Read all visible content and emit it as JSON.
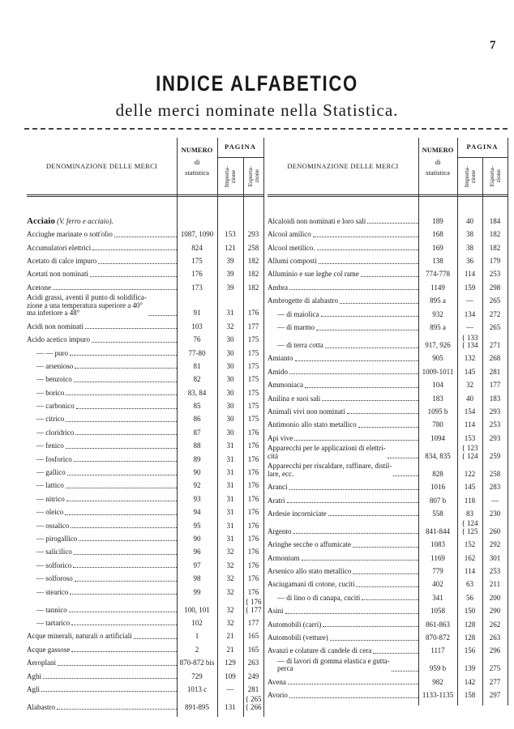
{
  "page_number": "7",
  "title": "INDICE ALFABETICO",
  "subtitle": "delle merci nominate nella Statistica.",
  "headers": {
    "name": "DENOMINAZIONE DELLE MERCI",
    "numero": "NUMERO",
    "numero_sub1": "di",
    "numero_sub2": "statistica",
    "pagina": "PAGINA",
    "importazione": "Importa-\nzione",
    "esportazione": "Esporta-\nzione"
  },
  "left_entries": [
    {
      "name": "Acciaio",
      "note": "(V. ferro e acciaio).",
      "numero": "",
      "importazione": "",
      "esportazione": "",
      "h": 1
    },
    {
      "name": "Acciughe marinate o sott'olio",
      "numero": "1087, 1090",
      "importazione": "153",
      "esportazione": "293",
      "h": 1
    },
    {
      "name": "Accumulatori elettrici",
      "numero": "824",
      "importazione": "121",
      "esportazione": "258",
      "h": 1
    },
    {
      "name": "Acetato di calce impuro",
      "numero": "175",
      "importazione": "39",
      "esportazione": "182",
      "h": 1
    },
    {
      "name": "Acetati non nominati",
      "numero": "176",
      "importazione": "39",
      "esportazione": "182",
      "h": 1
    },
    {
      "name": "Acetone",
      "numero": "173",
      "importazione": "39",
      "esportazione": "182",
      "h": 1
    },
    {
      "name": "Acidi grassi, aventi il punto di solidifica-\nzione a una temperatura superiore a 40°\nma inferiore a 48°",
      "numero": "91",
      "importazione": "31",
      "esportazione": "176",
      "h": 3
    },
    {
      "name": "Acidi non nominati",
      "numero": "103",
      "importazione": "32",
      "esportazione": "177",
      "h": 1
    },
    {
      "name": "Acido acetico impuro",
      "numero": "76",
      "importazione": "30",
      "esportazione": "175",
      "h": 1
    },
    {
      "name": "— — puro",
      "numero": "77-80",
      "importazione": "30",
      "esportazione": "175",
      "h": 1,
      "indent": 1
    },
    {
      "name": "— arsenioso",
      "numero": "81",
      "importazione": "30",
      "esportazione": "175",
      "h": 1,
      "indent": 1
    },
    {
      "name": "— benzoico",
      "numero": "82",
      "importazione": "30",
      "esportazione": "175",
      "h": 1,
      "indent": 1
    },
    {
      "name": "— borico",
      "numero": "83, 84",
      "importazione": "30",
      "esportazione": "175",
      "h": 1,
      "indent": 1
    },
    {
      "name": "— carbonico",
      "numero": "85",
      "importazione": "30",
      "esportazione": "175",
      "h": 1,
      "indent": 1
    },
    {
      "name": "— citrico",
      "numero": "86",
      "importazione": "30",
      "esportazione": "175",
      "h": 1,
      "indent": 1
    },
    {
      "name": "— cloridrico",
      "numero": "87",
      "importazione": "30",
      "esportazione": "176",
      "h": 1,
      "indent": 1
    },
    {
      "name": "— fenico",
      "numero": "88",
      "importazione": "31",
      "esportazione": "176",
      "h": 1,
      "indent": 1
    },
    {
      "name": "— fosforico",
      "numero": "89",
      "importazione": "31",
      "esportazione": "176",
      "h": 1,
      "indent": 1
    },
    {
      "name": "— gallico",
      "numero": "90",
      "importazione": "31",
      "esportazione": "176",
      "h": 1,
      "indent": 1
    },
    {
      "name": "— lattico",
      "numero": "92",
      "importazione": "31",
      "esportazione": "176",
      "h": 1,
      "indent": 1
    },
    {
      "name": "— nitrico",
      "numero": "93",
      "importazione": "31",
      "esportazione": "176",
      "h": 1,
      "indent": 1
    },
    {
      "name": "— oleico",
      "numero": "94",
      "importazione": "31",
      "esportazione": "176",
      "h": 1,
      "indent": 1
    },
    {
      "name": "— ossalico",
      "numero": "95",
      "importazione": "31",
      "esportazione": "176",
      "h": 1,
      "indent": 1
    },
    {
      "name": "— pirogallico",
      "numero": "90",
      "importazione": "31",
      "esportazione": "176",
      "h": 1,
      "indent": 1
    },
    {
      "name": "— salicilico",
      "numero": "96",
      "importazione": "32",
      "esportazione": "176",
      "h": 1,
      "indent": 1
    },
    {
      "name": "— solforico",
      "numero": "97",
      "importazione": "32",
      "esportazione": "176",
      "h": 1,
      "indent": 1
    },
    {
      "name": "— solforoso",
      "numero": "98",
      "importazione": "32",
      "esportazione": "176",
      "h": 1,
      "indent": 1
    },
    {
      "name": "— stearico",
      "numero": "99",
      "importazione": "32",
      "esportazione": "176",
      "h": 1,
      "indent": 1
    },
    {
      "name": "— tannico",
      "numero": "100, 101",
      "importazione": "32",
      "esportazione": "{ 176\n{ 177",
      "h": 1,
      "indent": 1
    },
    {
      "name": "— tartarico",
      "numero": "102",
      "importazione": "32",
      "esportazione": "177",
      "h": 1,
      "indent": 1
    },
    {
      "name": "Acque minerali, naturali o artificiali",
      "numero": "1",
      "importazione": "21",
      "esportazione": "165",
      "h": 1
    },
    {
      "name": "Acque gassose",
      "numero": "2",
      "importazione": "21",
      "esportazione": "165",
      "h": 1
    },
    {
      "name": "Aeroplani",
      "numero": "870-872 bis",
      "importazione": "129",
      "esportazione": "263",
      "h": 1
    },
    {
      "name": "Aghi",
      "numero": "729",
      "importazione": "109",
      "esportazione": "249",
      "h": 1
    },
    {
      "name": "Agli",
      "numero": "1013 c",
      "importazione": "—",
      "esportazione": "281",
      "h": 1
    },
    {
      "name": "Alabastro",
      "numero": "891-895",
      "importazione": "131",
      "esportazione": "{ 265\n{ 266",
      "h": 1
    }
  ],
  "right_entries": [
    {
      "name": "Alcaloidi non nominati e loro sali",
      "numero": "189",
      "importazione": "40",
      "esportazione": "184",
      "h": 1
    },
    {
      "name": "Alcool amilico",
      "numero": "168",
      "importazione": "38",
      "esportazione": "182",
      "h": 1
    },
    {
      "name": "Alcool metilico.",
      "numero": "169",
      "importazione": "38",
      "esportazione": "182",
      "h": 1
    },
    {
      "name": "Allumi composti",
      "numero": "138",
      "importazione": "36",
      "esportazione": "179",
      "h": 1
    },
    {
      "name": "Alluminio e sue leghe col rame",
      "numero": "774-778",
      "importazione": "114",
      "esportazione": "253",
      "h": 1
    },
    {
      "name": "Ambra",
      "numero": "1149",
      "importazione": "159",
      "esportazione": "298",
      "h": 1
    },
    {
      "name": "Ambrogette di alabastro",
      "numero": "895 a",
      "importazione": "—",
      "esportazione": "265",
      "h": 1
    },
    {
      "name": "— di maiolica",
      "numero": "932",
      "importazione": "134",
      "esportazione": "272",
      "h": 1,
      "indent": 1
    },
    {
      "name": "— di marmo",
      "numero": "895 a",
      "importazione": "—",
      "esportazione": "265",
      "h": 1,
      "indent": 1
    },
    {
      "name": "— di terra cotta",
      "numero": "917, 926",
      "importazione": "{ 133\n{ 134",
      "esportazione": "271",
      "h": 1,
      "indent": 1
    },
    {
      "name": "Amianto",
      "numero": "905",
      "importazione": "132",
      "esportazione": "268",
      "h": 1
    },
    {
      "name": "Amido",
      "numero": "1009-1011",
      "importazione": "145",
      "esportazione": "281",
      "h": 1
    },
    {
      "name": "Ammoniaca",
      "numero": "104",
      "importazione": "32",
      "esportazione": "177",
      "h": 1
    },
    {
      "name": "Anilina e suoi sali",
      "numero": "183",
      "importazione": "40",
      "esportazione": "183",
      "h": 1
    },
    {
      "name": "Animali vivi non nominati",
      "numero": "1095 b",
      "importazione": "154",
      "esportazione": "293",
      "h": 1
    },
    {
      "name": "Antimonio allo stato metallico",
      "numero": "780",
      "importazione": "114",
      "esportazione": "253",
      "h": 1
    },
    {
      "name": "Api vive",
      "numero": "1094",
      "importazione": "153",
      "esportazione": "293",
      "h": 1
    },
    {
      "name": "Apparecchi per le applicazioni di elettri-\ncità",
      "numero": "834, 835",
      "importazione": "{ 123\n{ 124",
      "esportazione": "259",
      "h": 2
    },
    {
      "name": "Apparecchi per riscaldare, raffinare, distil-\nlare, ecc.",
      "numero": "828",
      "importazione": "122",
      "esportazione": "258",
      "h": 2
    },
    {
      "name": "Aranci",
      "numero": "1016",
      "importazione": "145",
      "esportazione": "283",
      "h": 1
    },
    {
      "name": "Aratri",
      "numero": "807 b",
      "importazione": "118",
      "esportazione": "—",
      "h": 1
    },
    {
      "name": "Ardesie incorniciate",
      "numero": "558",
      "importazione": "83",
      "esportazione": "230",
      "h": 1
    },
    {
      "name": "Argento",
      "numero": "841-844",
      "importazione": "{ 124\n{ 125",
      "esportazione": "260",
      "h": 1
    },
    {
      "name": "Aringhe secche o affumicate",
      "numero": "1083",
      "importazione": "152",
      "esportazione": "292",
      "h": 1
    },
    {
      "name": "Armonium",
      "numero": "1169",
      "importazione": "162",
      "esportazione": "301",
      "h": 1
    },
    {
      "name": "Arsenico allo stato metallico",
      "numero": "779",
      "importazione": "114",
      "esportazione": "253",
      "h": 1
    },
    {
      "name": "Asciugamani di cotone, cuciti",
      "numero": "402",
      "importazione": "63",
      "esportazione": "211",
      "h": 1
    },
    {
      "name": "— di lino o di canapa, cuciti",
      "numero": "341",
      "importazione": "56",
      "esportazione": "200",
      "h": 1,
      "indent": 1
    },
    {
      "name": "Asini",
      "numero": "1058",
      "importazione": "150",
      "esportazione": "290",
      "h": 1
    },
    {
      "name": "Automobili (carri)",
      "numero": "861-863",
      "importazione": "128",
      "esportazione": "262",
      "h": 1
    },
    {
      "name": "Automobili (vetture)",
      "numero": "870-872",
      "importazione": "128",
      "esportazione": "263",
      "h": 1
    },
    {
      "name": "Avanzi e colature di candele di cera",
      "numero": "1117",
      "importazione": "156",
      "esportazione": "296",
      "h": 1
    },
    {
      "name": "— di lavori di gomma elastica e gutta-\nperca",
      "numero": "959 b",
      "importazione": "139",
      "esportazione": "275",
      "h": 2,
      "indent": 1
    },
    {
      "name": "Avena",
      "numero": "982",
      "importazione": "142",
      "esportazione": "277",
      "h": 1
    },
    {
      "name": "Avorio",
      "numero": "1133-1135",
      "importazione": "158",
      "esportazione": "297",
      "h": 1
    }
  ]
}
